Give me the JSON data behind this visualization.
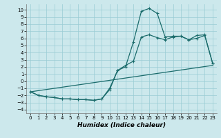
{
  "background_color": "#cce8ec",
  "grid_color": "#99ccd4",
  "line_color": "#1a6b6b",
  "marker_color": "#1a6b6b",
  "marker_style": "+",
  "marker_size": 3,
  "marker_linewidth": 0.8,
  "line_width": 0.9,
  "xlabel": "Humidex (Indice chaleur)",
  "xlabel_fontsize": 6.5,
  "ytick_fontsize": 5,
  "xtick_fontsize": 5,
  "xlim": [
    -0.5,
    23.5
  ],
  "ylim": [
    -4.5,
    10.8
  ],
  "xticks": [
    0,
    1,
    2,
    3,
    4,
    5,
    6,
    7,
    8,
    9,
    10,
    11,
    12,
    13,
    14,
    15,
    16,
    17,
    18,
    19,
    20,
    21,
    22,
    23
  ],
  "yticks": [
    -4,
    -3,
    -2,
    -1,
    0,
    1,
    2,
    3,
    4,
    5,
    6,
    7,
    8,
    9,
    10
  ],
  "curve1_x": [
    0,
    1,
    2,
    3,
    4,
    5,
    6,
    7,
    8,
    9,
    10,
    11,
    12,
    13,
    14,
    15,
    16,
    17,
    18,
    19,
    20,
    21,
    22,
    23
  ],
  "curve1_y": [
    -1.5,
    -2.0,
    -2.2,
    -2.3,
    -2.5,
    -2.5,
    -2.6,
    -2.6,
    -2.7,
    -2.5,
    -1.2,
    1.5,
    2.0,
    5.5,
    9.8,
    10.2,
    9.5,
    6.2,
    6.3,
    6.3,
    5.8,
    6.4,
    6.5,
    2.5
  ],
  "curve2_x": [
    0,
    1,
    2,
    3,
    4,
    5,
    6,
    7,
    8,
    9,
    10,
    11,
    12,
    13,
    14,
    15,
    16,
    17,
    18,
    19,
    20,
    21,
    22,
    23
  ],
  "curve2_y": [
    -1.5,
    -2.0,
    -2.2,
    -2.3,
    -2.5,
    -2.5,
    -2.6,
    -2.6,
    -2.7,
    -2.5,
    -1.0,
    1.5,
    2.2,
    2.8,
    6.2,
    6.5,
    6.1,
    5.8,
    6.2,
    6.3,
    5.8,
    6.0,
    6.4,
    2.5
  ],
  "curve3_x": [
    0,
    23
  ],
  "curve3_y": [
    -1.5,
    2.2
  ]
}
